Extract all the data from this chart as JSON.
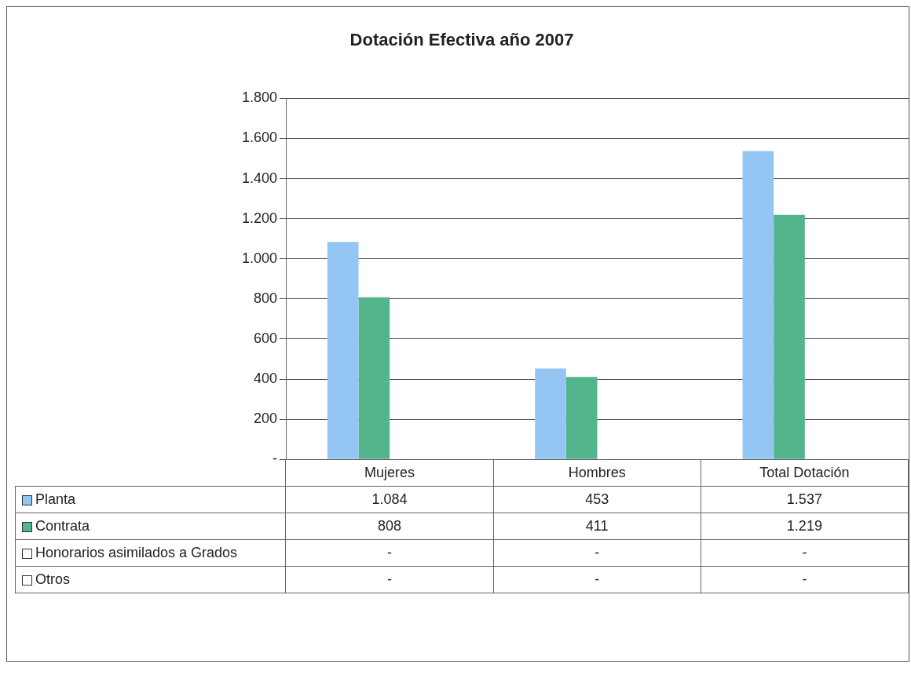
{
  "chart_data": {
    "type": "bar",
    "title": "Dotación Efectiva año 2007",
    "categories": [
      "Mujeres",
      "Hombres",
      "Total Dotación"
    ],
    "series": [
      {
        "name": "Planta",
        "color": "#93c6f2",
        "values": [
          1084,
          453,
          1537
        ],
        "value_labels": [
          "1.084",
          "453",
          "1.537"
        ]
      },
      {
        "name": "Contrata",
        "color": "#52b58c",
        "values": [
          808,
          411,
          1219
        ],
        "value_labels": [
          "808",
          "411",
          "1.219"
        ]
      },
      {
        "name": "Honorarios asimilados a Grados",
        "color": "#ffffff",
        "values": [
          null,
          null,
          null
        ],
        "value_labels": [
          "-",
          "-",
          "-"
        ]
      },
      {
        "name": "Otros",
        "color": "#ffffff",
        "values": [
          null,
          null,
          null
        ],
        "value_labels": [
          "-",
          "-",
          "-"
        ]
      }
    ],
    "ylim": [
      0,
      1800
    ],
    "yticks": [
      {
        "value": 0,
        "label": "-"
      },
      {
        "value": 200,
        "label": "200"
      },
      {
        "value": 400,
        "label": "400"
      },
      {
        "value": 600,
        "label": "600"
      },
      {
        "value": 800,
        "label": "800"
      },
      {
        "value": 1000,
        "label": "1.000"
      },
      {
        "value": 1200,
        "label": "1.200"
      },
      {
        "value": 1400,
        "label": "1.400"
      },
      {
        "value": 1600,
        "label": "1.600"
      },
      {
        "value": 1800,
        "label": "1.800"
      }
    ],
    "grid": "y",
    "legend": "bottom"
  }
}
